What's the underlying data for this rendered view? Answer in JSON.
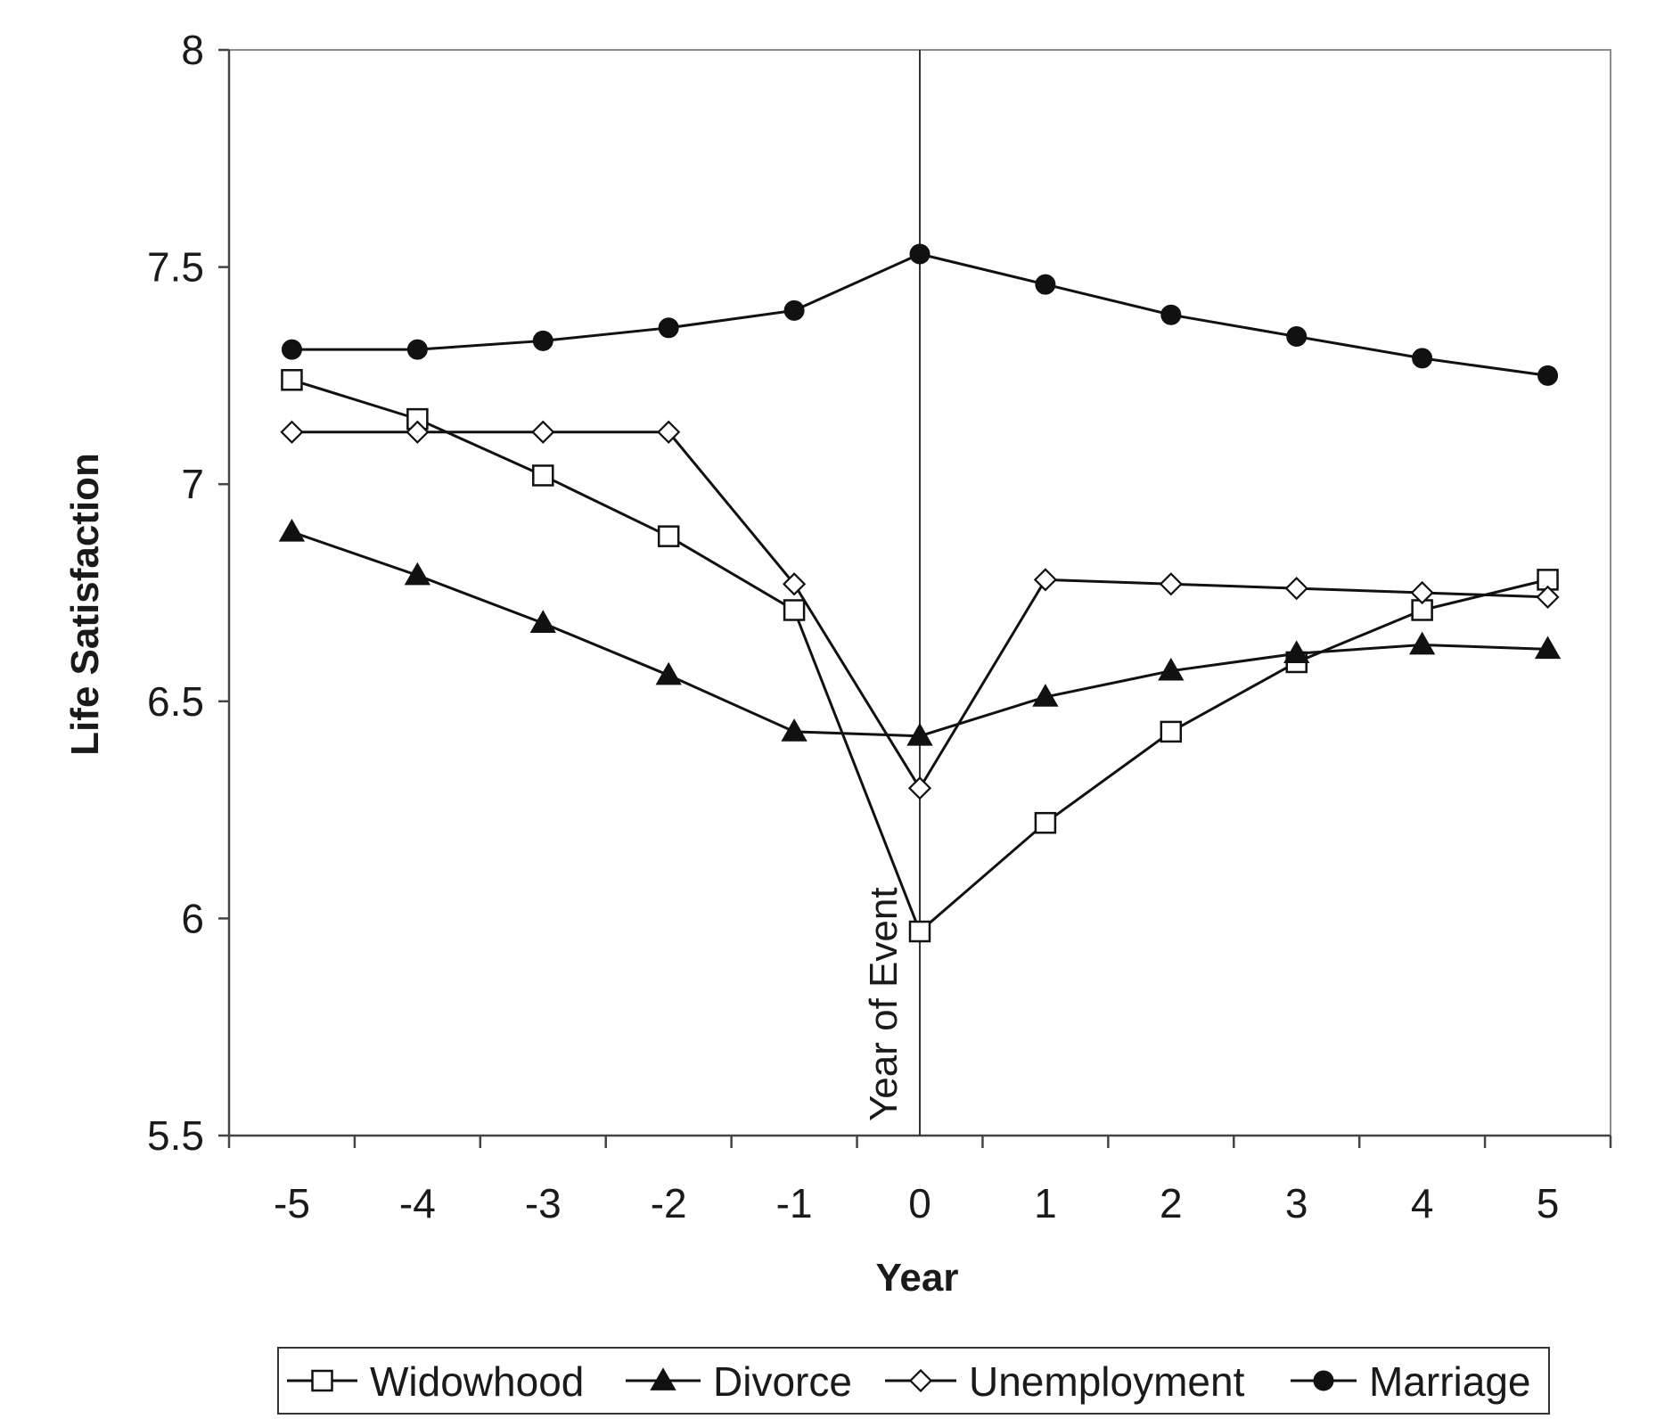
{
  "chart_data": {
    "type": "line",
    "title": "",
    "xlabel": "Year",
    "ylabel": "Life Satisfaction",
    "x": [
      -5,
      -4,
      -3,
      -2,
      -1,
      0,
      1,
      2,
      3,
      4,
      5
    ],
    "xlim": [
      -5.5,
      5.5
    ],
    "ylim": [
      5.5,
      8
    ],
    "yticks": [
      "5.5",
      "6",
      "6.5",
      "7",
      "7.5",
      "8"
    ],
    "xticks": [
      "-5",
      "-4",
      "-3",
      "-2",
      "-1",
      "0",
      "1",
      "2",
      "3",
      "4",
      "5"
    ],
    "grid": false,
    "legend": "bottom",
    "annotation": {
      "text": "Year of Event",
      "x": 0
    },
    "series": [
      {
        "name": "Widowhood",
        "marker": "square-open",
        "values": [
          7.24,
          7.15,
          7.02,
          6.88,
          6.71,
          5.97,
          6.22,
          6.43,
          6.59,
          6.71,
          6.78
        ]
      },
      {
        "name": "Divorce",
        "marker": "triangle-filled",
        "values": [
          6.89,
          6.79,
          6.68,
          6.56,
          6.43,
          6.42,
          6.51,
          6.57,
          6.61,
          6.63,
          6.62
        ]
      },
      {
        "name": "Unemployment",
        "marker": "diamond-open",
        "values": [
          7.12,
          7.12,
          7.12,
          7.12,
          6.77,
          6.3,
          6.78,
          6.77,
          6.76,
          6.75,
          6.74
        ]
      },
      {
        "name": "Marriage",
        "marker": "circle-filled",
        "values": [
          7.31,
          7.31,
          7.33,
          7.36,
          7.4,
          7.53,
          7.46,
          7.39,
          7.34,
          7.29,
          7.25
        ]
      }
    ]
  }
}
